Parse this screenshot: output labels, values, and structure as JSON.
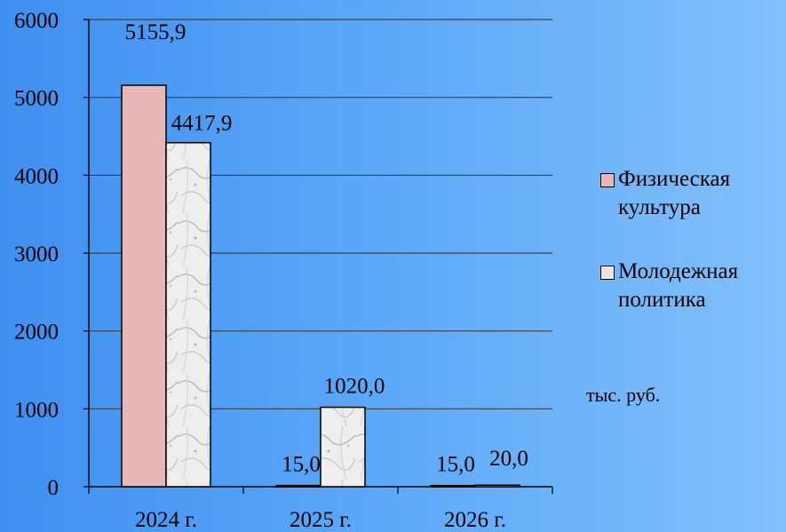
{
  "chart_data": {
    "type": "bar",
    "categories": [
      "2024 г.",
      "2025 г.",
      "2026 г."
    ],
    "series": [
      {
        "name": "Физическая культура",
        "values": [
          5155.9,
          15.0,
          15.0
        ],
        "labels": [
          "5155,9",
          "15,0",
          "15,0"
        ],
        "color": "#e8b8b8"
      },
      {
        "name": "Молодежная политика",
        "values": [
          4417.9,
          1020.0,
          20.0
        ],
        "labels": [
          "4417,9",
          "1020,0",
          "20,0"
        ],
        "color": "#e6e6e6"
      }
    ],
    "yticks": [
      "0",
      "1000",
      "2000",
      "3000",
      "4000",
      "5000",
      "6000"
    ],
    "ylim": [
      0,
      6000
    ],
    "grid": true,
    "legend_position": "right",
    "unit_note": "тыс. руб."
  }
}
